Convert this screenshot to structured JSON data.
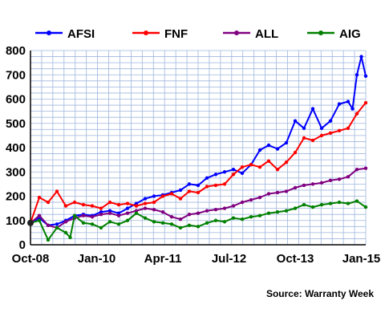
{
  "chart_data": {
    "type": "line",
    "x_ticks": [
      "Oct-08",
      "Jan-10",
      "Apr-11",
      "Jul-12",
      "Oct-13",
      "Jan-15"
    ],
    "ylim": [
      0,
      800
    ],
    "yticks": [
      0,
      100,
      200,
      300,
      400,
      500,
      600,
      700,
      800
    ],
    "grid": true,
    "legend": "top",
    "source": "Source: Warranty Week",
    "series": [
      {
        "name": "AFSI",
        "color": "#0000ff",
        "points": [
          [
            "2008-10",
            90
          ],
          [
            "2008-12",
            110
          ],
          [
            "2009-02",
            80
          ],
          [
            "2009-04",
            85
          ],
          [
            "2009-06",
            100
          ],
          [
            "2009-08",
            120
          ],
          [
            "2009-10",
            125
          ],
          [
            "2009-12",
            120
          ],
          [
            "2010-02",
            135
          ],
          [
            "2010-04",
            140
          ],
          [
            "2010-06",
            130
          ],
          [
            "2010-08",
            150
          ],
          [
            "2010-10",
            170
          ],
          [
            "2010-12",
            190
          ],
          [
            "2011-02",
            200
          ],
          [
            "2011-04",
            205
          ],
          [
            "2011-06",
            215
          ],
          [
            "2011-08",
            225
          ],
          [
            "2011-10",
            250
          ],
          [
            "2011-12",
            245
          ],
          [
            "2012-02",
            275
          ],
          [
            "2012-04",
            290
          ],
          [
            "2012-06",
            300
          ],
          [
            "2012-08",
            310
          ],
          [
            "2012-10",
            295
          ],
          [
            "2012-12",
            330
          ],
          [
            "2013-02",
            390
          ],
          [
            "2013-04",
            410
          ],
          [
            "2013-06",
            395
          ],
          [
            "2013-08",
            420
          ],
          [
            "2013-10",
            510
          ],
          [
            "2013-12",
            480
          ],
          [
            "2014-02",
            560
          ],
          [
            "2014-04",
            480
          ],
          [
            "2014-06",
            510
          ],
          [
            "2014-08",
            580
          ],
          [
            "2014-10",
            590
          ],
          [
            "2014-11",
            560
          ],
          [
            "2014-12",
            700
          ],
          [
            "2015-01",
            775
          ],
          [
            "2015-02",
            695
          ]
        ]
      },
      {
        "name": "FNF",
        "color": "#ff0000",
        "points": [
          [
            "2008-10",
            90
          ],
          [
            "2008-12",
            195
          ],
          [
            "2009-02",
            175
          ],
          [
            "2009-04",
            220
          ],
          [
            "2009-06",
            160
          ],
          [
            "2009-08",
            175
          ],
          [
            "2009-10",
            165
          ],
          [
            "2009-12",
            160
          ],
          [
            "2010-02",
            150
          ],
          [
            "2010-04",
            175
          ],
          [
            "2010-06",
            165
          ],
          [
            "2010-08",
            170
          ],
          [
            "2010-10",
            160
          ],
          [
            "2010-12",
            170
          ],
          [
            "2011-02",
            175
          ],
          [
            "2011-04",
            200
          ],
          [
            "2011-06",
            210
          ],
          [
            "2011-08",
            190
          ],
          [
            "2011-10",
            220
          ],
          [
            "2011-12",
            215
          ],
          [
            "2012-02",
            240
          ],
          [
            "2012-04",
            245
          ],
          [
            "2012-06",
            250
          ],
          [
            "2012-08",
            290
          ],
          [
            "2012-10",
            320
          ],
          [
            "2012-12",
            330
          ],
          [
            "2013-02",
            320
          ],
          [
            "2013-04",
            345
          ],
          [
            "2013-06",
            310
          ],
          [
            "2013-08",
            340
          ],
          [
            "2013-10",
            380
          ],
          [
            "2013-12",
            440
          ],
          [
            "2014-02",
            430
          ],
          [
            "2014-04",
            450
          ],
          [
            "2014-06",
            460
          ],
          [
            "2014-08",
            470
          ],
          [
            "2014-10",
            480
          ],
          [
            "2014-12",
            540
          ],
          [
            "2015-02",
            585
          ]
        ]
      },
      {
        "name": "ALL",
        "color": "#800080",
        "points": [
          [
            "2008-10",
            90
          ],
          [
            "2008-12",
            120
          ],
          [
            "2009-02",
            80
          ],
          [
            "2009-04",
            70
          ],
          [
            "2009-06",
            95
          ],
          [
            "2009-08",
            110
          ],
          [
            "2009-10",
            120
          ],
          [
            "2009-12",
            115
          ],
          [
            "2010-02",
            125
          ],
          [
            "2010-04",
            130
          ],
          [
            "2010-06",
            120
          ],
          [
            "2010-08",
            130
          ],
          [
            "2010-10",
            140
          ],
          [
            "2010-12",
            150
          ],
          [
            "2011-02",
            145
          ],
          [
            "2011-04",
            135
          ],
          [
            "2011-06",
            115
          ],
          [
            "2011-08",
            105
          ],
          [
            "2011-10",
            125
          ],
          [
            "2011-12",
            130
          ],
          [
            "2012-02",
            140
          ],
          [
            "2012-04",
            145
          ],
          [
            "2012-06",
            150
          ],
          [
            "2012-08",
            160
          ],
          [
            "2012-10",
            175
          ],
          [
            "2012-12",
            185
          ],
          [
            "2013-02",
            195
          ],
          [
            "2013-04",
            210
          ],
          [
            "2013-06",
            215
          ],
          [
            "2013-08",
            220
          ],
          [
            "2013-10",
            235
          ],
          [
            "2013-12",
            245
          ],
          [
            "2014-02",
            250
          ],
          [
            "2014-04",
            255
          ],
          [
            "2014-06",
            265
          ],
          [
            "2014-08",
            270
          ],
          [
            "2014-10",
            280
          ],
          [
            "2014-12",
            310
          ],
          [
            "2015-02",
            315
          ]
        ]
      },
      {
        "name": "AIG",
        "color": "#008000",
        "points": [
          [
            "2008-10",
            90
          ],
          [
            "2008-12",
            100
          ],
          [
            "2009-02",
            20
          ],
          [
            "2009-04",
            70
          ],
          [
            "2009-06",
            50
          ],
          [
            "2009-07",
            30
          ],
          [
            "2009-08",
            120
          ],
          [
            "2009-10",
            90
          ],
          [
            "2009-12",
            85
          ],
          [
            "2010-02",
            70
          ],
          [
            "2010-04",
            95
          ],
          [
            "2010-06",
            85
          ],
          [
            "2010-08",
            100
          ],
          [
            "2010-10",
            130
          ],
          [
            "2010-12",
            110
          ],
          [
            "2011-02",
            95
          ],
          [
            "2011-04",
            90
          ],
          [
            "2011-06",
            85
          ],
          [
            "2011-08",
            70
          ],
          [
            "2011-10",
            80
          ],
          [
            "2011-12",
            75
          ],
          [
            "2012-02",
            90
          ],
          [
            "2012-04",
            100
          ],
          [
            "2012-06",
            95
          ],
          [
            "2012-08",
            110
          ],
          [
            "2012-10",
            105
          ],
          [
            "2012-12",
            115
          ],
          [
            "2013-02",
            120
          ],
          [
            "2013-04",
            130
          ],
          [
            "2013-06",
            135
          ],
          [
            "2013-08",
            140
          ],
          [
            "2013-10",
            150
          ],
          [
            "2013-12",
            165
          ],
          [
            "2014-02",
            155
          ],
          [
            "2014-04",
            165
          ],
          [
            "2014-06",
            170
          ],
          [
            "2014-08",
            175
          ],
          [
            "2014-10",
            170
          ],
          [
            "2014-12",
            180
          ],
          [
            "2015-02",
            155
          ]
        ]
      }
    ]
  }
}
